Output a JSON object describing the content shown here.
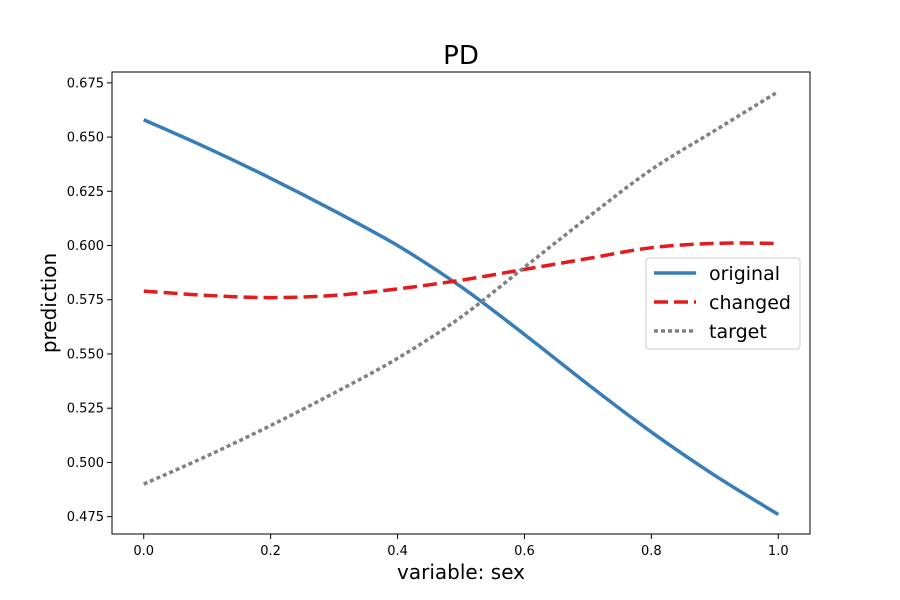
{
  "chart_data": {
    "type": "line",
    "title": "PD",
    "xlabel": "variable: sex",
    "ylabel": "prediction",
    "xlim": [
      -0.05,
      1.05
    ],
    "ylim": [
      0.467,
      0.68
    ],
    "x_ticks": [
      {
        "value": 0.0,
        "label": "0.0"
      },
      {
        "value": 0.2,
        "label": "0.2"
      },
      {
        "value": 0.4,
        "label": "0.4"
      },
      {
        "value": 0.6,
        "label": "0.6"
      },
      {
        "value": 0.8,
        "label": "0.8"
      },
      {
        "value": 1.0,
        "label": "1.0"
      }
    ],
    "y_ticks": [
      {
        "value": 0.475,
        "label": "0.475"
      },
      {
        "value": 0.5,
        "label": "0.500"
      },
      {
        "value": 0.525,
        "label": "0.525"
      },
      {
        "value": 0.55,
        "label": "0.550"
      },
      {
        "value": 0.575,
        "label": "0.575"
      },
      {
        "value": 0.6,
        "label": "0.600"
      },
      {
        "value": 0.625,
        "label": "0.625"
      },
      {
        "value": 0.65,
        "label": "0.650"
      },
      {
        "value": 0.675,
        "label": "0.675"
      }
    ],
    "grid": false,
    "legend_placement": "center-right",
    "x": [
      0.0,
      0.1,
      0.2,
      0.3,
      0.4,
      0.5,
      0.6,
      0.7,
      0.8,
      0.9,
      1.0
    ],
    "series": [
      {
        "name": "original",
        "color": "#377eb8",
        "dash": "solid",
        "values": [
          0.658,
          0.645,
          0.631,
          0.616,
          0.6,
          0.581,
          0.559,
          0.536,
          0.514,
          0.494,
          0.476
        ]
      },
      {
        "name": "changed",
        "color": "#e41a1c",
        "dash": "dashed",
        "values": [
          0.579,
          0.577,
          0.576,
          0.577,
          0.58,
          0.584,
          0.589,
          0.594,
          0.599,
          0.601,
          0.601
        ]
      },
      {
        "name": "target",
        "color": "#808080",
        "dash": "dotted",
        "values": [
          0.49,
          0.503,
          0.517,
          0.532,
          0.548,
          0.567,
          0.59,
          0.613,
          0.635,
          0.653,
          0.671
        ]
      }
    ]
  }
}
